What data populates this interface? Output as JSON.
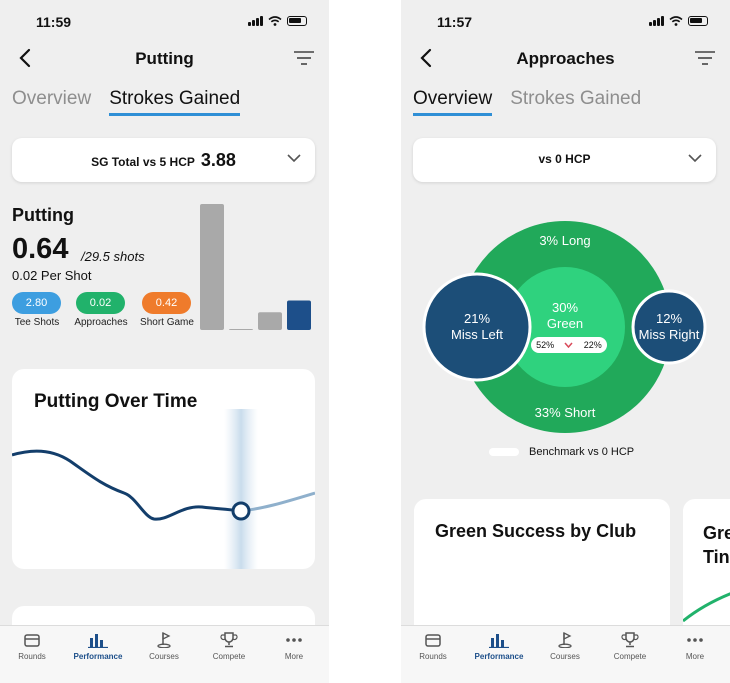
{
  "left": {
    "status_time": "11:59",
    "title": "Putting",
    "tabs": [
      {
        "label": "Overview"
      },
      {
        "label": "Strokes Gained"
      }
    ],
    "selector": {
      "label": "SG Total vs 5 HCP",
      "value": "3.88"
    },
    "sg": {
      "title": "Putting",
      "value": "0.64",
      "shots": "/29.5 shots",
      "per_shot": "0.02 Per Shot",
      "pills": [
        {
          "value": "2.80",
          "caption": "Tee Shots",
          "color": "#3d9ee0"
        },
        {
          "value": "0.02",
          "caption": "Approaches",
          "color": "#21b26b"
        },
        {
          "value": "0.42",
          "caption": "Short Game",
          "color": "#ef7b2b"
        }
      ],
      "bars": [
        {
          "name": "putting-sg-bar",
          "value": 0.64,
          "color": "#a9a9a9"
        },
        {
          "name": "tee-bar",
          "value": 0.0,
          "color": "#a9a9a9"
        },
        {
          "name": "approach-bar",
          "value": 0.09,
          "color": "#a9a9a9"
        },
        {
          "name": "short-game-bar",
          "value": 0.15,
          "color": "#1d4f8a"
        }
      ]
    },
    "over_time": {
      "title": "Putting Over Time"
    }
  },
  "right": {
    "status_time": "11:57",
    "title": "Approaches",
    "tabs": [
      {
        "label": "Overview"
      },
      {
        "label": "Strokes Gained"
      }
    ],
    "selector": {
      "label": "vs 0 HCP"
    },
    "target": {
      "long": "3% Long",
      "short": "33% Short",
      "green_pct": "30%",
      "green_label": "Green",
      "miss_left_pct": "21%",
      "miss_left_label": "Miss Left",
      "miss_right_pct": "12%",
      "miss_right_label": "Miss Right",
      "bench_a": "52%",
      "bench_b": "22%",
      "legend": "Benchmark vs 0 HCP"
    },
    "cards": {
      "green_success": "Green Success by Club",
      "partial": "Gre\nTin"
    }
  },
  "tabbar": [
    {
      "label": "Rounds",
      "icon": "rounds-icon"
    },
    {
      "label": "Performance",
      "icon": "performance-icon"
    },
    {
      "label": "Courses",
      "icon": "courses-flag-icon"
    },
    {
      "label": "Compete",
      "icon": "trophy-icon"
    },
    {
      "label": "More",
      "icon": "more-dots-icon"
    }
  ],
  "colors": {
    "accent": "#2f8fd6",
    "navy": "#1d4f8a",
    "green_outer": "#21a95a",
    "green_inner": "#2fd27e",
    "miss_circle": "#1c4e78"
  }
}
